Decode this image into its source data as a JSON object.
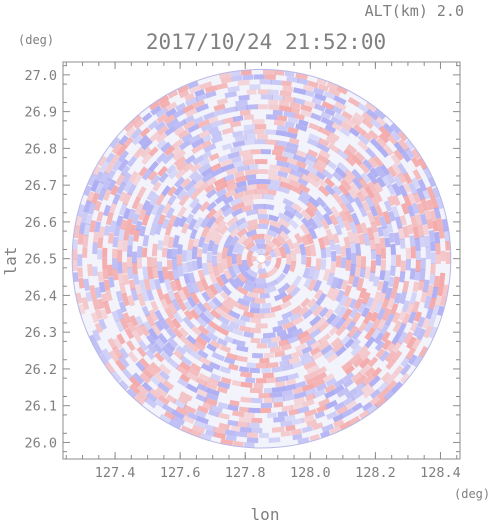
{
  "chart_data": {
    "type": "heatmap",
    "subtype": "radar-polar-scan",
    "altitude_label": "ALT(km) 2.0",
    "datetime": "2017/10/24 21:52:00",
    "xlabel": "lon",
    "ylabel": "lat",
    "x_unit": "(deg)",
    "y_unit": "(deg)",
    "xlim": [
      127.24,
      128.46
    ],
    "ylim": [
      25.955,
      27.035
    ],
    "x_ticks": [
      "127.4",
      "127.6",
      "127.8",
      "128.0",
      "128.2",
      "128.4"
    ],
    "y_ticks": [
      "27.0",
      "26.9",
      "26.8",
      "26.7",
      "26.6",
      "26.5",
      "26.4",
      "26.3",
      "26.2",
      "26.1",
      "26.0"
    ],
    "scan_center": {
      "lon": 127.85,
      "lat": 26.5
    },
    "scan_radius_deg_lat": 0.515,
    "colors": {
      "positive": "#f4a6a6",
      "negative": "#a9a9f3",
      "near_zero": "#f3f3fb"
    },
    "grid": false
  }
}
